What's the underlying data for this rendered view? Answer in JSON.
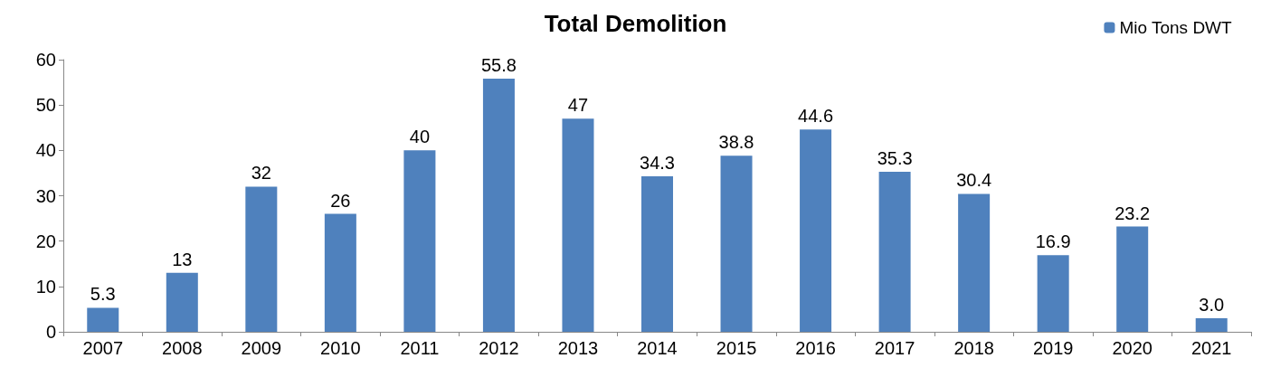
{
  "chart_data": {
    "type": "bar",
    "title": "Total Demolition",
    "categories": [
      "2007",
      "2008",
      "2009",
      "2010",
      "2011",
      "2012",
      "2013",
      "2014",
      "2015",
      "2016",
      "2017",
      "2018",
      "2019",
      "2020",
      "2021"
    ],
    "series": [
      {
        "name": "Mio Tons DWT",
        "color": "#4f81bd",
        "values": [
          5.3,
          13,
          32,
          26,
          40,
          55.8,
          47,
          34.3,
          38.8,
          44.6,
          35.3,
          30.4,
          16.9,
          23.2,
          3.0
        ],
        "value_labels": [
          "5.3",
          "13",
          "32",
          "26",
          "40",
          "55.8",
          "47",
          "34.3",
          "38.8",
          "44.6",
          "35.3",
          "30.4",
          "16.9",
          "23.2",
          "3.0"
        ]
      }
    ],
    "ylim": [
      0,
      60
    ],
    "yticks": [
      0,
      10,
      20,
      30,
      40,
      50,
      60
    ],
    "grid": false,
    "legend": "top right"
  }
}
